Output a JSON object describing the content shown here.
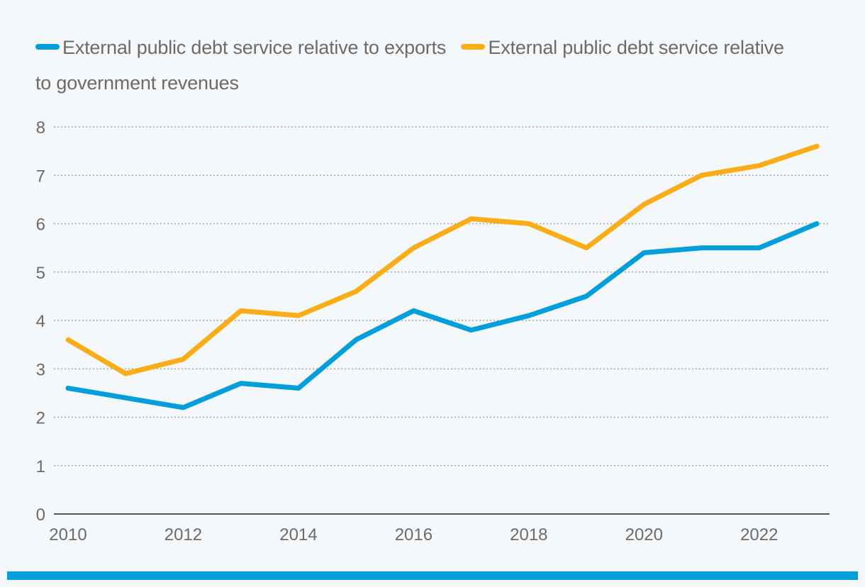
{
  "colors": {
    "background": "#f4f8fb",
    "series_exports": "#009edb",
    "series_revenues": "#fbad18",
    "grid": "#a6a6a6",
    "axis": "#222222",
    "text": "#6d6a67",
    "bottom_bar": "#009edb"
  },
  "legend": {
    "items": [
      {
        "label": "External public debt service relative to exports",
        "color": "#009edb"
      },
      {
        "label": "External public debt service relative to government revenues",
        "color": "#fbad18"
      }
    ]
  },
  "chart_data": {
    "type": "line",
    "title": "",
    "xlabel": "",
    "ylabel": "",
    "x": [
      2010,
      2011,
      2012,
      2013,
      2014,
      2015,
      2016,
      2017,
      2018,
      2019,
      2020,
      2021,
      2022,
      2023
    ],
    "series": [
      {
        "name": "External public debt service relative to exports",
        "color": "#009edb",
        "values": [
          2.6,
          2.4,
          2.2,
          2.7,
          2.6,
          3.6,
          4.2,
          3.8,
          4.1,
          4.5,
          5.4,
          5.5,
          5.5,
          6.0
        ]
      },
      {
        "name": "External public debt service relative to government revenues",
        "color": "#fbad18",
        "values": [
          3.6,
          2.9,
          3.2,
          4.2,
          4.1,
          4.6,
          5.5,
          6.1,
          6.0,
          5.5,
          6.4,
          7.0,
          7.2,
          7.6
        ]
      }
    ],
    "ylim": [
      0,
      8
    ],
    "yticks": [
      0,
      1,
      2,
      3,
      4,
      5,
      6,
      7,
      8
    ],
    "xticks": [
      2010,
      2012,
      2014,
      2016,
      2018,
      2020,
      2022
    ],
    "xlim": [
      2010,
      2023
    ],
    "grid": true,
    "legend_position": "top-left"
  }
}
